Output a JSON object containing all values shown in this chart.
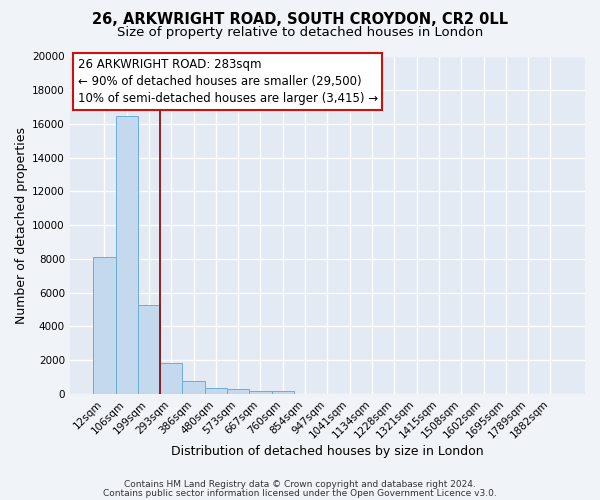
{
  "title_line1": "26, ARKWRIGHT ROAD, SOUTH CROYDON, CR2 0LL",
  "title_line2": "Size of property relative to detached houses in London",
  "xlabel": "Distribution of detached houses by size in London",
  "ylabel": "Number of detached properties",
  "bar_labels": [
    "12sqm",
    "106sqm",
    "199sqm",
    "293sqm",
    "386sqm",
    "480sqm",
    "573sqm",
    "667sqm",
    "760sqm",
    "854sqm",
    "947sqm",
    "1041sqm",
    "1134sqm",
    "1228sqm",
    "1321sqm",
    "1415sqm",
    "1508sqm",
    "1602sqm",
    "1695sqm",
    "1789sqm",
    "1882sqm"
  ],
  "bar_values": [
    8100,
    16500,
    5300,
    1850,
    750,
    350,
    280,
    200,
    170,
    0,
    0,
    0,
    0,
    0,
    0,
    0,
    0,
    0,
    0,
    0,
    0
  ],
  "bar_color": "#c5d9ee",
  "bar_edge_color": "#6aaed6",
  "ylim": [
    0,
    20000
  ],
  "yticks": [
    0,
    2000,
    4000,
    6000,
    8000,
    10000,
    12000,
    14000,
    16000,
    18000,
    20000
  ],
  "vline_color": "#8b1010",
  "ann_line1": "26 ARKWRIGHT ROAD: 283sqm",
  "ann_line2": "← 90% of detached houses are smaller (29,500)",
  "ann_line3": "10% of semi-detached houses are larger (3,415) →",
  "footer_line1": "Contains HM Land Registry data © Crown copyright and database right 2024.",
  "footer_line2": "Contains public sector information licensed under the Open Government Licence v3.0.",
  "fig_bg": "#f0f3f8",
  "plot_bg": "#e4eaf4",
  "grid_color": "#ffffff",
  "title_fontsize": 10.5,
  "subtitle_fontsize": 9.5,
  "tick_fontsize": 7.5,
  "xlabel_fontsize": 9,
  "ylabel_fontsize": 9,
  "ann_fontsize": 8.5,
  "footer_fontsize": 6.5
}
